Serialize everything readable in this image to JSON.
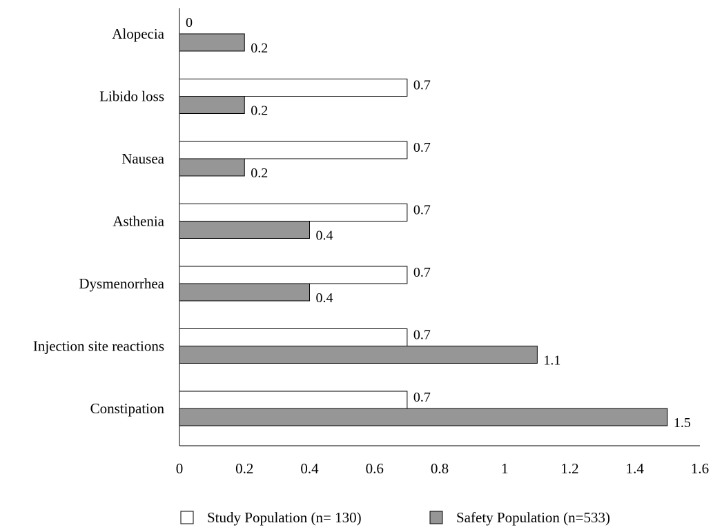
{
  "chart_data": {
    "type": "bar",
    "orientation": "horizontal",
    "categories": [
      "Alopecia",
      "Libido loss",
      "Nausea",
      "Asthenia",
      "Dysmenorrhea",
      "Injection site reactions",
      "Constipation"
    ],
    "series": [
      {
        "name": "Study Population (n= 130)",
        "values": [
          0,
          0.7,
          0.7,
          0.7,
          0.7,
          0.7,
          0.7
        ],
        "labels": [
          "0",
          "0.7",
          "0.7",
          "0.7",
          "0.7",
          "0.7",
          "0.7"
        ],
        "color": "#ffffff"
      },
      {
        "name": "Safety Population (n=533)",
        "values": [
          0.2,
          0.2,
          0.2,
          0.4,
          0.4,
          1.1,
          1.5
        ],
        "labels": [
          "0.2",
          "0.2",
          "0.2",
          "0.4",
          "0.4",
          "1.1",
          "1.5"
        ],
        "color": "#969696"
      }
    ],
    "xlim": [
      0,
      1.6
    ],
    "xticks": [
      0,
      0.2,
      0.4,
      0.6,
      0.8,
      1,
      1.2,
      1.4,
      1.6
    ],
    "xtick_labels": [
      "0",
      "0.2",
      "0.4",
      "0.6",
      "0.8",
      "1",
      "1.2",
      "1.4",
      "1.6"
    ],
    "grid": false,
    "legend_position": "bottom"
  }
}
